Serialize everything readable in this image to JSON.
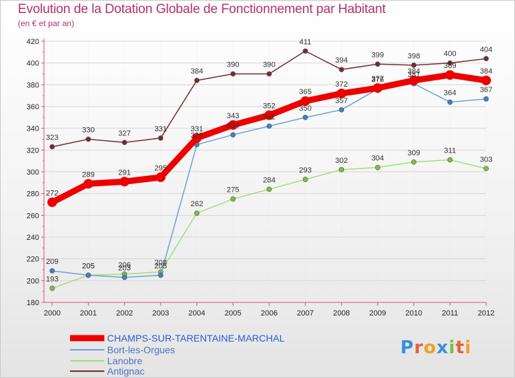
{
  "header": {
    "title": "Evolution de la Dotation Globale de Fonctionnement par Habitant",
    "subtitle": "(en € et par an)"
  },
  "brand": {
    "letters": [
      "P",
      "r",
      "o",
      "x",
      "i",
      "t",
      "i"
    ],
    "colors": [
      "#3a8fd8",
      "#e8603c",
      "#f0a020",
      "#3a8fd8",
      "#7ac043",
      "#e8603c",
      "#f0a020"
    ]
  },
  "chart_data": {
    "type": "line",
    "title": "Evolution de la Dotation Globale de Fonctionnement par Habitant",
    "subtitle": "(en € et par an)",
    "xlabel": "",
    "ylabel": "",
    "x": [
      "2000",
      "2001",
      "2002",
      "2003",
      "2004",
      "2005",
      "2006",
      "2007",
      "2008",
      "2009",
      "2010",
      "2011",
      "2012"
    ],
    "ylim": [
      180,
      420
    ],
    "yticks": [
      180,
      200,
      220,
      240,
      260,
      280,
      300,
      320,
      340,
      360,
      380,
      400,
      420
    ],
    "grid": true,
    "legend": "bottom-left",
    "series": [
      {
        "name": "CHAMPS-SUR-TARENTAINE-MARCHAL",
        "color": "#ee0000",
        "marker": "#ee0000",
        "values": [
          272,
          289,
          291,
          295,
          331,
          343,
          352,
          365,
          372,
          377,
          384,
          389,
          384
        ],
        "labels": [
          "272",
          "289",
          "291",
          "295",
          "331",
          "343",
          "352",
          "365",
          "372",
          "377",
          "384",
          "389",
          "384"
        ]
      },
      {
        "name": "Bort-les-Orgues",
        "color": "#6aa2d6",
        "marker": "#3b82c4",
        "values": [
          209,
          205,
          203,
          205,
          325,
          334,
          342,
          350,
          357,
          376,
          381,
          364,
          367
        ],
        "labels": [
          "209",
          "205",
          "203",
          "205",
          "325",
          "334",
          "342",
          "350",
          "357",
          "376",
          "381",
          "364",
          "367"
        ]
      },
      {
        "name": "Lanobre",
        "color": "#a6dc7c",
        "marker": "#7ac043",
        "values": [
          193,
          205,
          206,
          208,
          262,
          275,
          284,
          293,
          302,
          304,
          309,
          311,
          303
        ],
        "labels": [
          "193",
          "205",
          "206",
          "208",
          "262",
          "275",
          "284",
          "293",
          "302",
          "304",
          "309",
          "311",
          "303"
        ]
      },
      {
        "name": "Antignac",
        "color": "#7a2a30",
        "marker": "#7a2a30",
        "values": [
          323,
          330,
          327,
          331,
          384,
          390,
          390,
          411,
          394,
          399,
          398,
          400,
          404
        ],
        "labels": [
          "323",
          "330",
          "327",
          "331",
          "384",
          "390",
          "390",
          "411",
          "394",
          "399",
          "398",
          "400",
          "404"
        ]
      }
    ]
  }
}
